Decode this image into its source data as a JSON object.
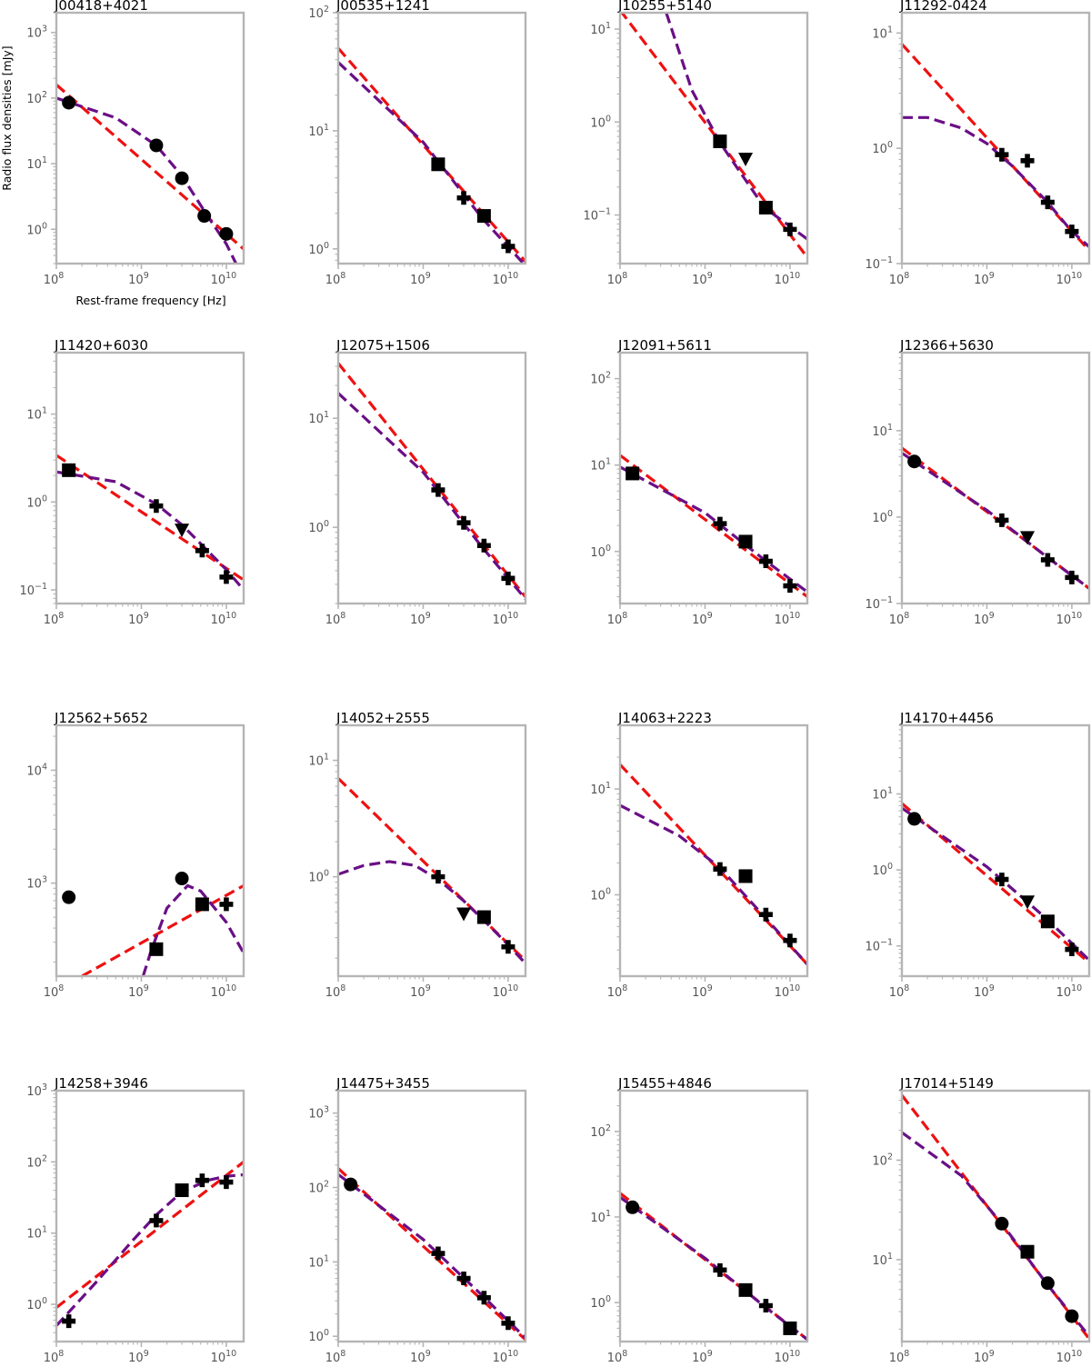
{
  "figure": {
    "ylabel": "Radio flux densities [mJy]",
    "xlabel": "Rest-frame frequency [Hz]",
    "x_ticks": [
      "10^8",
      "10^9",
      "10^10"
    ]
  },
  "colors": {
    "powerlaw": "#ee1111",
    "curved": "#6a0f86",
    "frame": "#b5b5b5",
    "marker": "#000000"
  },
  "chart_data": [
    {
      "type": "scatter",
      "title": "J00418+4021",
      "xlim": [
        100000000.0,
        16000000000.0
      ],
      "ylim": [
        0.3,
        2000
      ],
      "yticks": [
        1,
        10,
        100,
        1000
      ],
      "points": [
        {
          "x": 140000000.0,
          "y": 85,
          "marker": "circle"
        },
        {
          "x": 1500000000.0,
          "y": 19,
          "marker": "circle"
        },
        {
          "x": 3000000000.0,
          "y": 6,
          "marker": "circle"
        },
        {
          "x": 5500000000.0,
          "y": 1.6,
          "marker": "circle"
        },
        {
          "x": 10000000000.0,
          "y": 0.85,
          "marker": "circle"
        }
      ],
      "powerlaw": [
        [
          100000000.0,
          160
        ],
        [
          16000000000.0,
          0.5
        ]
      ],
      "curved": [
        [
          100000000.0,
          100
        ],
        [
          500000000.0,
          50
        ],
        [
          1500000000.0,
          19
        ],
        [
          3000000000.0,
          6.5
        ],
        [
          6000000000.0,
          1.6
        ],
        [
          10000000000.0,
          0.6
        ],
        [
          13000000000.0,
          0.3
        ]
      ]
    },
    {
      "type": "scatter",
      "title": "J00535+1241",
      "xlim": [
        100000000.0,
        16000000000.0
      ],
      "ylim": [
        0.75,
        100
      ],
      "yticks": [
        1,
        10,
        100
      ],
      "points": [
        {
          "x": 1500000000.0,
          "y": 5.2,
          "marker": "square"
        },
        {
          "x": 3000000000.0,
          "y": 2.7,
          "marker": "plus"
        },
        {
          "x": 5200000000.0,
          "y": 1.9,
          "marker": "square"
        },
        {
          "x": 10000000000.0,
          "y": 1.05,
          "marker": "plus"
        }
      ],
      "powerlaw": [
        [
          100000000.0,
          50
        ],
        [
          16000000000.0,
          0.78
        ]
      ],
      "curved": [
        [
          100000000.0,
          38
        ],
        [
          1000000000.0,
          8
        ],
        [
          5000000000.0,
          1.8
        ],
        [
          16000000000.0,
          0.72
        ]
      ]
    },
    {
      "type": "scatter",
      "title": "J10255+5140",
      "xlim": [
        100000000.0,
        16000000000.0
      ],
      "ylim": [
        0.03,
        15
      ],
      "yticks": [
        0.1,
        1,
        10
      ],
      "points": [
        {
          "x": 1500000000.0,
          "y": 0.62,
          "marker": "square"
        },
        {
          "x": 3000000000.0,
          "y": 0.4,
          "marker": "triangle"
        },
        {
          "x": 5200000000.0,
          "y": 0.12,
          "marker": "square"
        },
        {
          "x": 10000000000.0,
          "y": 0.07,
          "marker": "plus"
        }
      ],
      "powerlaw": [
        [
          100000000.0,
          16
        ],
        [
          16000000000.0,
          0.035
        ]
      ],
      "curved": [
        [
          350000000.0,
          15
        ],
        [
          700000000.0,
          2.2
        ],
        [
          1500000000.0,
          0.6
        ],
        [
          5000000000.0,
          0.12
        ],
        [
          16000000000.0,
          0.055
        ]
      ]
    },
    {
      "type": "scatter",
      "title": "J11292-0424",
      "xlim": [
        100000000.0,
        16000000000.0
      ],
      "ylim": [
        0.1,
        15
      ],
      "yticks": [
        0.1,
        1,
        10
      ],
      "points": [
        {
          "x": 1500000000.0,
          "y": 0.88,
          "marker": "plus"
        },
        {
          "x": 3000000000.0,
          "y": 0.78,
          "marker": "plus"
        },
        {
          "x": 5200000000.0,
          "y": 0.34,
          "marker": "plus"
        },
        {
          "x": 10000000000.0,
          "y": 0.19,
          "marker": "plus"
        }
      ],
      "powerlaw": [
        [
          100000000.0,
          8
        ],
        [
          16000000000.0,
          0.13
        ]
      ],
      "curved": [
        [
          100000000.0,
          1.85
        ],
        [
          200000000.0,
          1.85
        ],
        [
          500000000.0,
          1.5
        ],
        [
          1000000000.0,
          1.1
        ],
        [
          2000000000.0,
          0.7
        ],
        [
          5000000000.0,
          0.35
        ],
        [
          10000000000.0,
          0.19
        ],
        [
          16000000000.0,
          0.14
        ]
      ]
    },
    {
      "type": "scatter",
      "title": "J11420+6030",
      "xlim": [
        100000000.0,
        16000000000.0
      ],
      "ylim": [
        0.07,
        50
      ],
      "yticks": [
        0.1,
        1,
        10
      ],
      "points": [
        {
          "x": 140000000.0,
          "y": 2.3,
          "marker": "square"
        },
        {
          "x": 1500000000.0,
          "y": 0.9,
          "marker": "plus"
        },
        {
          "x": 3000000000.0,
          "y": 0.48,
          "marker": "triangle"
        },
        {
          "x": 5200000000.0,
          "y": 0.28,
          "marker": "plus"
        },
        {
          "x": 10000000000.0,
          "y": 0.14,
          "marker": "plus"
        }
      ],
      "powerlaw": [
        [
          100000000.0,
          3.4
        ],
        [
          16000000000.0,
          0.13
        ]
      ],
      "curved": [
        [
          100000000.0,
          2.2
        ],
        [
          500000000.0,
          1.7
        ],
        [
          1500000000.0,
          0.95
        ],
        [
          3000000000.0,
          0.55
        ],
        [
          10000000000.0,
          0.17
        ],
        [
          16000000000.0,
          0.1
        ]
      ]
    },
    {
      "type": "scatter",
      "title": "J12075+1506",
      "xlim": [
        100000000.0,
        16000000000.0
      ],
      "ylim": [
        0.2,
        40
      ],
      "yticks": [
        1,
        10
      ],
      "points": [
        {
          "x": 1500000000.0,
          "y": 2.2,
          "marker": "plus"
        },
        {
          "x": 3000000000.0,
          "y": 1.1,
          "marker": "plus"
        },
        {
          "x": 5200000000.0,
          "y": 0.68,
          "marker": "plus"
        },
        {
          "x": 10000000000.0,
          "y": 0.34,
          "marker": "plus"
        }
      ],
      "powerlaw": [
        [
          100000000.0,
          32
        ],
        [
          16000000000.0,
          0.23
        ]
      ],
      "curved": [
        [
          100000000.0,
          17
        ],
        [
          1000000000.0,
          3.2
        ],
        [
          5000000000.0,
          0.65
        ],
        [
          16000000000.0,
          0.22
        ]
      ]
    },
    {
      "type": "scatter",
      "title": "J12091+5611",
      "xlim": [
        100000000.0,
        16000000000.0
      ],
      "ylim": [
        0.25,
        200
      ],
      "yticks": [
        1,
        10,
        100
      ],
      "points": [
        {
          "x": 140000000.0,
          "y": 8,
          "marker": "square"
        },
        {
          "x": 1500000000.0,
          "y": 2.1,
          "marker": "plus"
        },
        {
          "x": 3000000000.0,
          "y": 1.3,
          "marker": "square"
        },
        {
          "x": 5200000000.0,
          "y": 0.77,
          "marker": "plus"
        },
        {
          "x": 10000000000.0,
          "y": 0.4,
          "marker": "plus"
        }
      ],
      "powerlaw": [
        [
          100000000.0,
          13
        ],
        [
          16000000000.0,
          0.3
        ]
      ],
      "curved": [
        [
          100000000.0,
          9.5
        ],
        [
          1000000000.0,
          2.8
        ],
        [
          5000000000.0,
          0.8
        ],
        [
          16000000000.0,
          0.34
        ]
      ]
    },
    {
      "type": "scatter",
      "title": "J12366+5630",
      "xlim": [
        100000000.0,
        16000000000.0
      ],
      "ylim": [
        0.1,
        80
      ],
      "yticks": [
        0.1,
        1,
        10
      ],
      "points": [
        {
          "x": 140000000.0,
          "y": 4.4,
          "marker": "circle"
        },
        {
          "x": 1500000000.0,
          "y": 0.92,
          "marker": "plus"
        },
        {
          "x": 3000000000.0,
          "y": 0.58,
          "marker": "triangle"
        },
        {
          "x": 5200000000.0,
          "y": 0.32,
          "marker": "plus"
        },
        {
          "x": 10000000000.0,
          "y": 0.2,
          "marker": "plus"
        }
      ],
      "powerlaw": [
        [
          100000000.0,
          6.3
        ],
        [
          16000000000.0,
          0.15
        ]
      ],
      "curved": [
        [
          100000000.0,
          5.5
        ],
        [
          1000000000.0,
          1.2
        ],
        [
          5000000000.0,
          0.35
        ],
        [
          16000000000.0,
          0.15
        ]
      ]
    },
    {
      "type": "scatter",
      "title": "J12562+5652",
      "xlim": [
        100000000.0,
        16000000000.0
      ],
      "ylim": [
        150,
        25000
      ],
      "yticks": [
        1000,
        10000
      ],
      "points": [
        {
          "x": 140000000.0,
          "y": 750,
          "marker": "circle"
        },
        {
          "x": 1500000000.0,
          "y": 260,
          "marker": "square"
        },
        {
          "x": 3000000000.0,
          "y": 1100,
          "marker": "circle"
        },
        {
          "x": 5200000000.0,
          "y": 650,
          "marker": "square"
        },
        {
          "x": 10000000000.0,
          "y": 650,
          "marker": "plus"
        }
      ],
      "powerlaw": [
        [
          200000000.0,
          150
        ],
        [
          16000000000.0,
          950
        ]
      ],
      "curved": [
        [
          1050000000.0,
          150
        ],
        [
          1300000000.0,
          250
        ],
        [
          2000000000.0,
          600
        ],
        [
          3500000000.0,
          950
        ],
        [
          5000000000.0,
          850
        ],
        [
          10000000000.0,
          450
        ],
        [
          16000000000.0,
          240
        ]
      ]
    },
    {
      "type": "scatter",
      "title": "J14052+2555",
      "xlim": [
        100000000.0,
        16000000000.0
      ],
      "ylim": [
        0.14,
        20
      ],
      "yticks": [
        1,
        10
      ],
      "points": [
        {
          "x": 1500000000.0,
          "y": 1.0,
          "marker": "plus"
        },
        {
          "x": 3000000000.0,
          "y": 0.48,
          "marker": "triangle"
        },
        {
          "x": 5200000000.0,
          "y": 0.45,
          "marker": "square"
        },
        {
          "x": 10000000000.0,
          "y": 0.25,
          "marker": "plus"
        }
      ],
      "powerlaw": [
        [
          100000000.0,
          7
        ],
        [
          16000000000.0,
          0.19
        ]
      ],
      "curved": [
        [
          100000000.0,
          1.05
        ],
        [
          200000000.0,
          1.25
        ],
        [
          400000000.0,
          1.35
        ],
        [
          800000000.0,
          1.25
        ],
        [
          1500000000.0,
          0.95
        ],
        [
          3000000000.0,
          0.62
        ],
        [
          6000000000.0,
          0.38
        ],
        [
          10000000000.0,
          0.26
        ],
        [
          16000000000.0,
          0.18
        ]
      ]
    },
    {
      "type": "scatter",
      "title": "J14063+2223",
      "xlim": [
        100000000.0,
        16000000000.0
      ],
      "ylim": [
        0.17,
        40
      ],
      "yticks": [
        1,
        10
      ],
      "points": [
        {
          "x": 1500000000.0,
          "y": 1.75,
          "marker": "plus"
        },
        {
          "x": 3000000000.0,
          "y": 1.5,
          "marker": "square"
        },
        {
          "x": 5200000000.0,
          "y": 0.65,
          "marker": "plus"
        },
        {
          "x": 10000000000.0,
          "y": 0.37,
          "marker": "plus"
        }
      ],
      "powerlaw": [
        [
          100000000.0,
          17
        ],
        [
          16000000000.0,
          0.22
        ]
      ],
      "curved": [
        [
          100000000.0,
          7
        ],
        [
          500000000.0,
          3.6
        ],
        [
          1500000000.0,
          1.8
        ],
        [
          5000000000.0,
          0.62
        ],
        [
          16000000000.0,
          0.22
        ]
      ]
    },
    {
      "type": "scatter",
      "title": "J14170+4456",
      "xlim": [
        100000000.0,
        16000000000.0
      ],
      "ylim": [
        0.04,
        80
      ],
      "yticks": [
        0.1,
        1,
        10
      ],
      "points": [
        {
          "x": 140000000.0,
          "y": 4.7,
          "marker": "circle"
        },
        {
          "x": 1500000000.0,
          "y": 0.75,
          "marker": "plus"
        },
        {
          "x": 3000000000.0,
          "y": 0.38,
          "marker": "triangle"
        },
        {
          "x": 5200000000.0,
          "y": 0.21,
          "marker": "square"
        },
        {
          "x": 10000000000.0,
          "y": 0.09,
          "marker": "plus"
        }
      ],
      "powerlaw": [
        [
          100000000.0,
          7.5
        ],
        [
          16000000000.0,
          0.06
        ]
      ],
      "curved": [
        [
          100000000.0,
          6.5
        ],
        [
          1000000000.0,
          1.1
        ],
        [
          5000000000.0,
          0.23
        ],
        [
          16000000000.0,
          0.065
        ]
      ]
    },
    {
      "type": "scatter",
      "title": "J14258+3946",
      "xlim": [
        100000000.0,
        16000000000.0
      ],
      "ylim": [
        0.3,
        1000
      ],
      "yticks": [
        1,
        10,
        100,
        1000
      ],
      "points": [
        {
          "x": 140000000.0,
          "y": 0.58,
          "marker": "plus"
        },
        {
          "x": 1500000000.0,
          "y": 15,
          "marker": "plus"
        },
        {
          "x": 3000000000.0,
          "y": 40,
          "marker": "square"
        },
        {
          "x": 5200000000.0,
          "y": 55,
          "marker": "plus"
        },
        {
          "x": 10000000000.0,
          "y": 52,
          "marker": "plus"
        }
      ],
      "powerlaw": [
        [
          100000000.0,
          0.9
        ],
        [
          16000000000.0,
          100
        ]
      ],
      "curved": [
        [
          100000000.0,
          0.5
        ],
        [
          300000000.0,
          2.1
        ],
        [
          800000000.0,
          8
        ],
        [
          1500000000.0,
          18
        ],
        [
          3000000000.0,
          38
        ],
        [
          6000000000.0,
          55
        ],
        [
          10000000000.0,
          63
        ],
        [
          16000000000.0,
          66
        ]
      ]
    },
    {
      "type": "scatter",
      "title": "J14475+3455",
      "xlim": [
        100000000.0,
        16000000000.0
      ],
      "ylim": [
        0.85,
        2000
      ],
      "yticks": [
        1,
        10,
        100,
        1000
      ],
      "points": [
        {
          "x": 140000000.0,
          "y": 110,
          "marker": "circle"
        },
        {
          "x": 1500000000.0,
          "y": 13,
          "marker": "plus"
        },
        {
          "x": 3000000000.0,
          "y": 6,
          "marker": "plus"
        },
        {
          "x": 5200000000.0,
          "y": 3.3,
          "marker": "plus"
        },
        {
          "x": 10000000000.0,
          "y": 1.5,
          "marker": "plus"
        }
      ],
      "powerlaw": [
        [
          100000000.0,
          180
        ],
        [
          16000000000.0,
          0.9
        ]
      ],
      "curved": [
        [
          100000000.0,
          150
        ],
        [
          1000000000.0,
          20
        ],
        [
          5000000000.0,
          3.5
        ],
        [
          16000000000.0,
          0.95
        ]
      ]
    },
    {
      "type": "scatter",
      "title": "J15455+4846",
      "xlim": [
        100000000.0,
        16000000000.0
      ],
      "ylim": [
        0.35,
        300
      ],
      "yticks": [
        1,
        10,
        100
      ],
      "points": [
        {
          "x": 140000000.0,
          "y": 13,
          "marker": "circle"
        },
        {
          "x": 1500000000.0,
          "y": 2.4,
          "marker": "plus"
        },
        {
          "x": 3000000000.0,
          "y": 1.4,
          "marker": "square"
        },
        {
          "x": 5200000000.0,
          "y": 0.92,
          "marker": "plus"
        },
        {
          "x": 10000000000.0,
          "y": 0.5,
          "marker": "square"
        }
      ],
      "powerlaw": [
        [
          100000000.0,
          19
        ],
        [
          16000000000.0,
          0.37
        ]
      ],
      "curved": [
        [
          100000000.0,
          17
        ],
        [
          1000000000.0,
          3.3
        ],
        [
          5000000000.0,
          0.9
        ],
        [
          16000000000.0,
          0.37
        ]
      ]
    },
    {
      "type": "scatter",
      "title": "J17014+5149",
      "xlim": [
        100000000.0,
        16000000000.0
      ],
      "ylim": [
        1.5,
        500
      ],
      "yticks": [
        10,
        100
      ],
      "points": [
        {
          "x": 1500000000.0,
          "y": 23,
          "marker": "circle"
        },
        {
          "x": 3000000000.0,
          "y": 12,
          "marker": "square"
        },
        {
          "x": 5200000000.0,
          "y": 5.8,
          "marker": "circle"
        },
        {
          "x": 10000000000.0,
          "y": 2.7,
          "marker": "circle"
        }
      ],
      "powerlaw": [
        [
          100000000.0,
          450
        ],
        [
          16000000000.0,
          1.6
        ]
      ],
      "curved": [
        [
          100000000.0,
          190
        ],
        [
          500000000.0,
          70
        ],
        [
          1500000000.0,
          23
        ],
        [
          5000000000.0,
          5.8
        ],
        [
          16000000000.0,
          1.7
        ]
      ]
    }
  ]
}
